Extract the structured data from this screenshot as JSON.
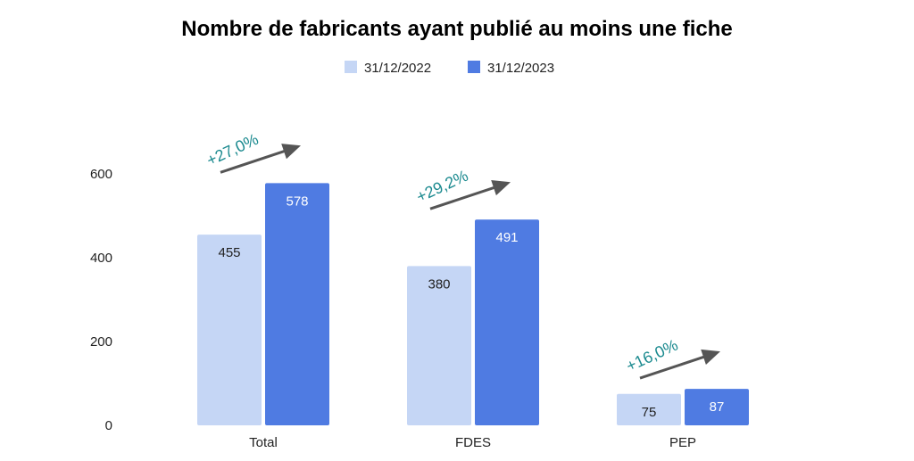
{
  "colors": {
    "series_2022": "#c5d6f5",
    "series_2023": "#4f7be2",
    "growth": "#1b8a8f",
    "arrow": "#555555",
    "label_dark": "#222222",
    "label_light": "#ffffff"
  },
  "chart_data": {
    "type": "bar",
    "title": "Nombre de fabricants ayant publié au moins une fiche",
    "xlabel": "",
    "ylabel": "",
    "ylim": [
      0,
      600
    ],
    "yticks": [
      "0",
      "200",
      "400",
      "600"
    ],
    "yticks_values": [
      0,
      200,
      400,
      600
    ],
    "grid": false,
    "legend_position": "top-center",
    "categories": [
      "Total",
      "FDES",
      "PEP"
    ],
    "series": [
      {
        "name": "31/12/2022",
        "values": [
          455,
          380,
          75
        ],
        "value_labels": [
          "455",
          "380",
          "75"
        ]
      },
      {
        "name": "31/12/2023",
        "values": [
          578,
          491,
          87
        ],
        "value_labels": [
          "578",
          "491",
          "87"
        ]
      }
    ],
    "annotations": [
      "+27,0%",
      "+29,2%",
      "+16,0%"
    ]
  }
}
